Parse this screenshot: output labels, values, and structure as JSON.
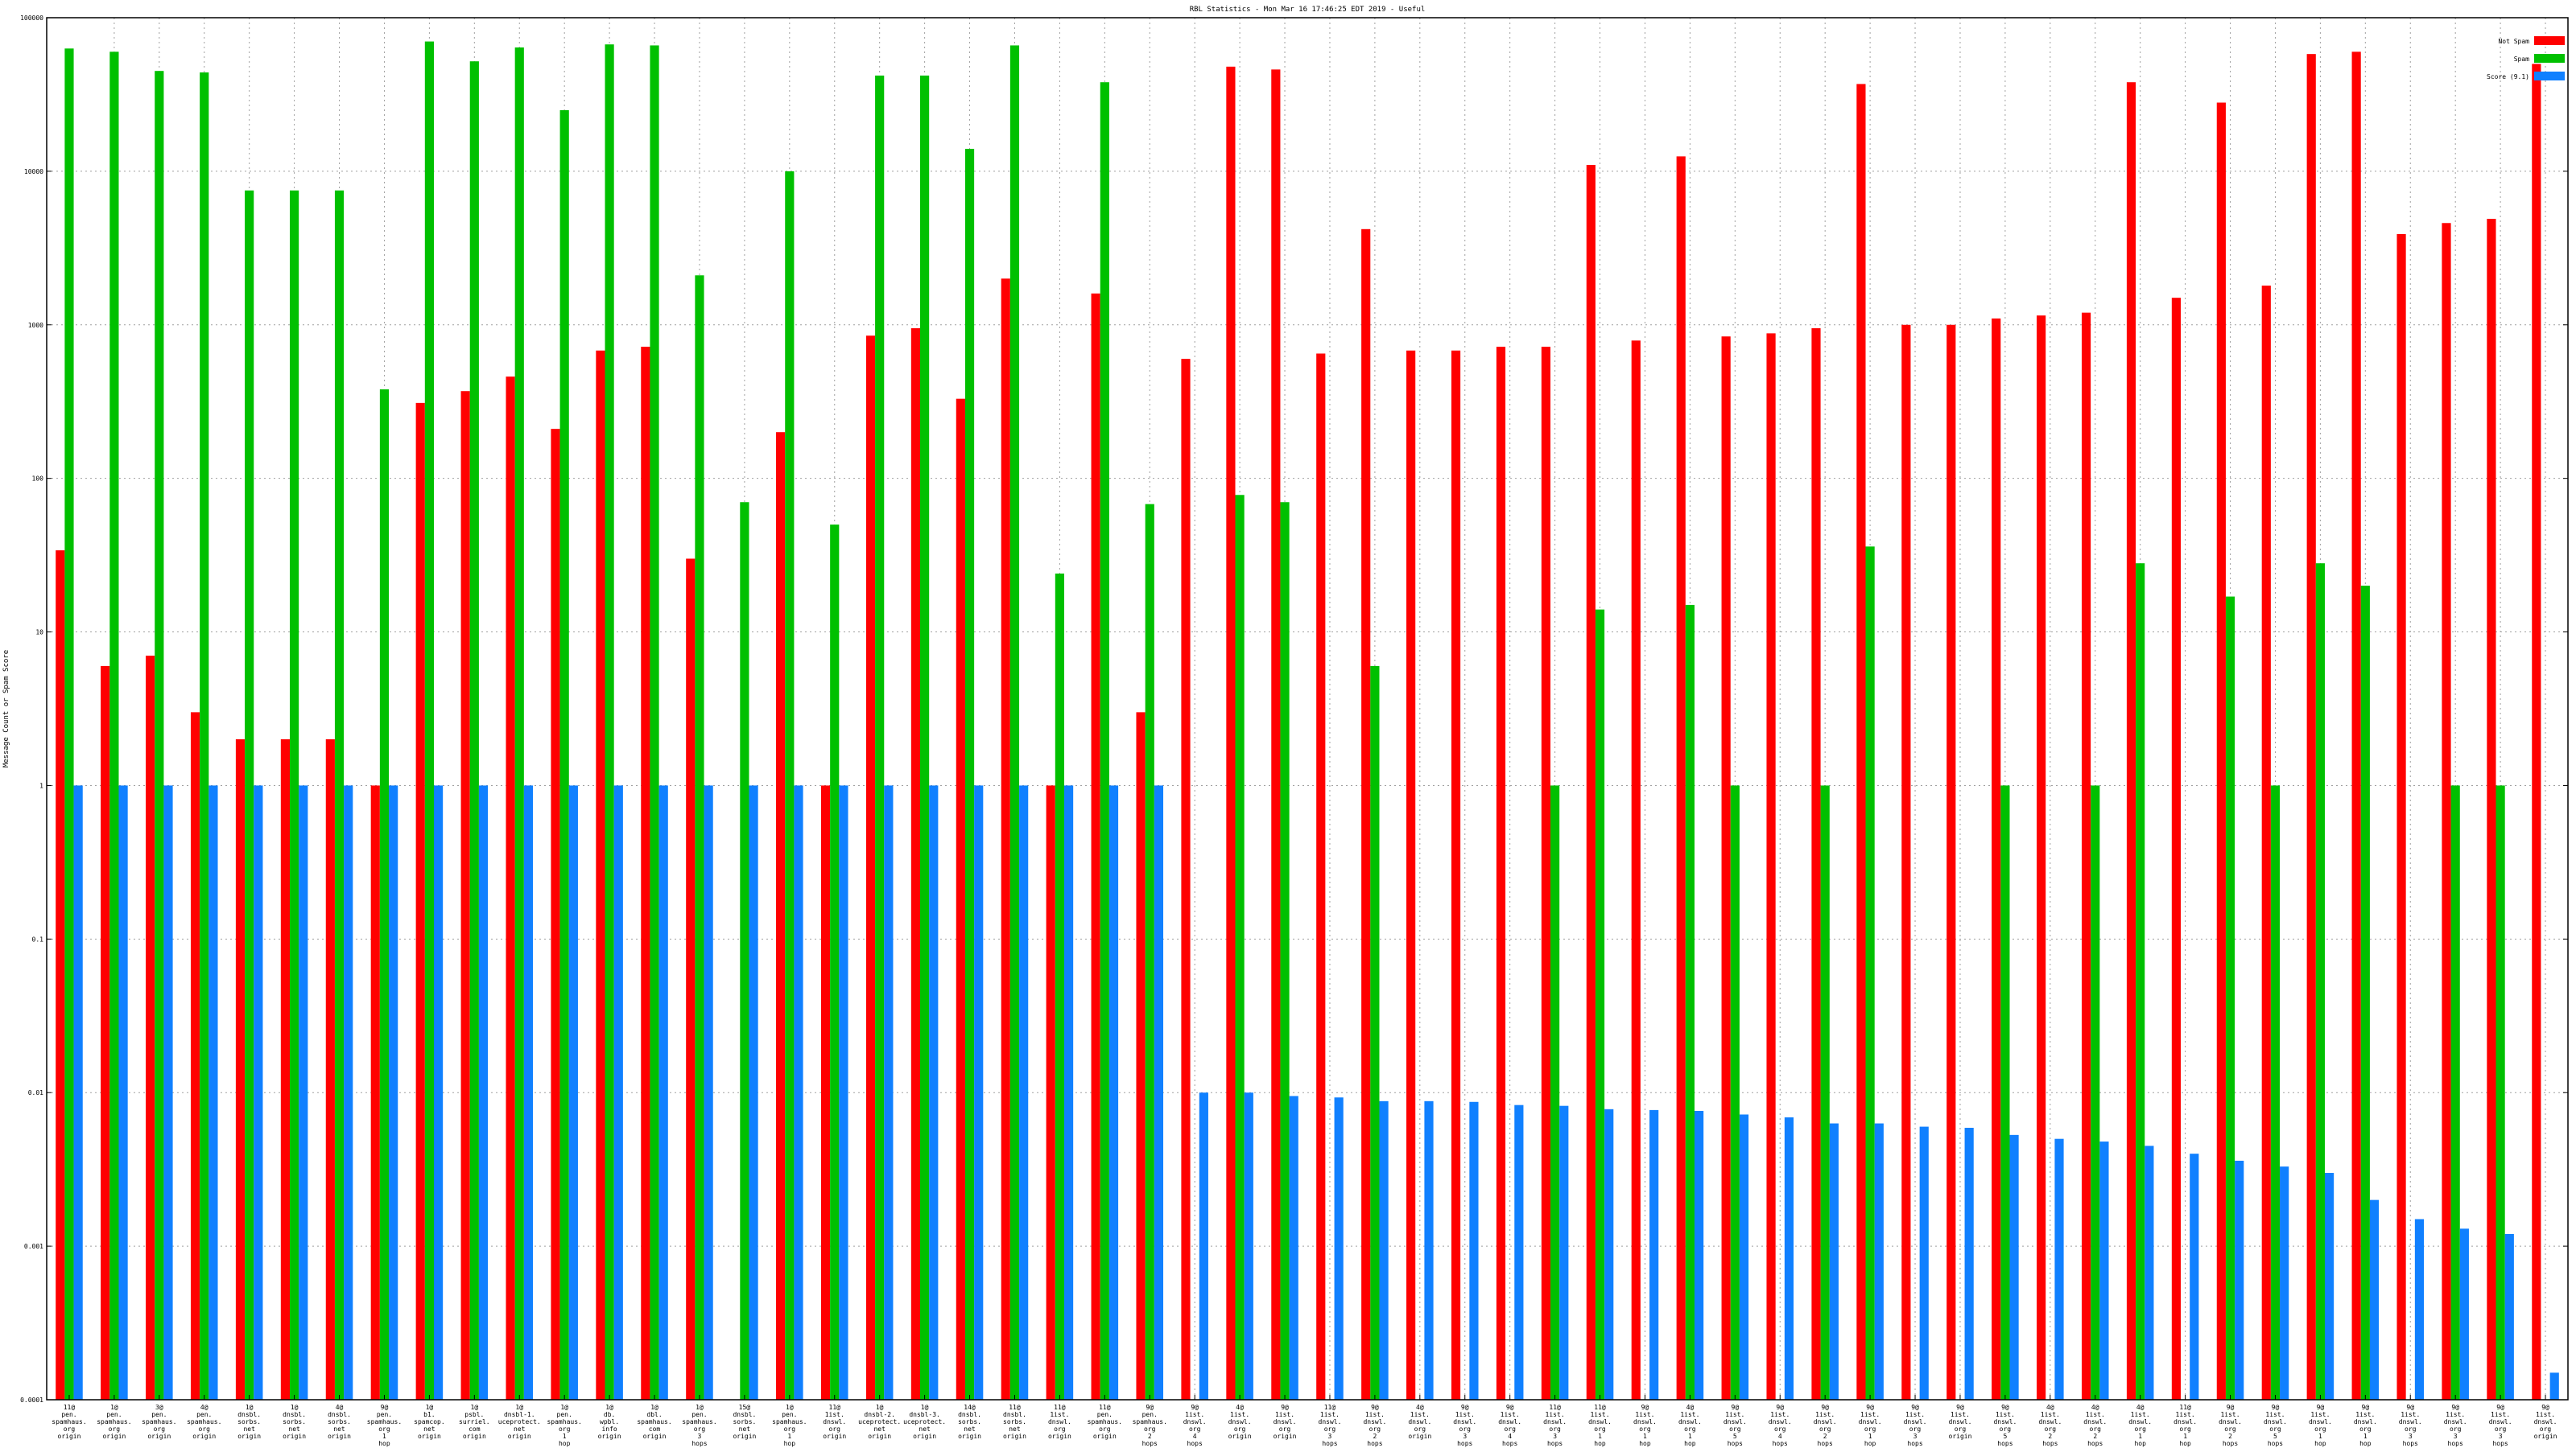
{
  "chart_data": {
    "type": "bar",
    "title": "RBL Statistics - Mon Mar 16 17:46:25 EDT 2019 - Useful",
    "ylabel": "Message Count or Spam Score",
    "yscale": "log",
    "ylim": [
      0.0001,
      100000
    ],
    "y_ticks": [
      "0.0001",
      "0.001",
      "0.01",
      "0.1",
      "1",
      "10",
      "100",
      "1000",
      "10000",
      "100000"
    ],
    "grid": true,
    "legend_position": "top-right",
    "colors": {
      "Not Spam": "#ff0000",
      "Spam": "#00c000",
      "Score": "#1080ff"
    },
    "categories": [
      "11@ pen. spamhaus. org origin",
      "1@ pen. spamhaus. org origin",
      "3@ pen. spamhaus. org origin",
      "4@ pen. spamhaus. org origin",
      "1@ dnsbl. sorbs. net origin",
      "1@ dnsbl. sorbs. net origin",
      "4@ dnsbl. sorbs. net origin",
      "9@ pen. spamhaus. org 1 hop",
      "1@ b1. spamcop. net origin",
      "1@ psbl. surriel. com origin",
      "1@ dnsbl-1. uceprotect. net origin",
      "1@ pen. spamhaus. org 1 hop",
      "1@ db. wpbl. info origin",
      "1@ dbl. spamhaus. com origin",
      "1@ pen. spamhaus. org 3 hops",
      "15@ dnsbl. sorbs. net origin",
      "1@ pen. spamhaus. org 1 hop",
      "11@ 1ist. dnswl. org origin",
      "1@ dnsbl-2. uceprotect. net origin",
      "1@ dnsbl-3. uceprotect. net origin",
      "14@ dnsbl. sorbs. net origin",
      "11@ dnsbl. sorbs. net origin",
      "11@ 1ist. dnswl. org origin",
      "11@ pen. spamhaus. org origin",
      "9@ pen. spamhaus. org 2 hops",
      "9@ 1ist. dnswl. org 4 hops",
      "4@ 1ist. dnswl. org origin",
      "9@ 1ist. dnswl. org origin",
      "11@ 1ist. dnswl. org 3 hops",
      "9@ 1ist. dnswl. org 2 hops",
      "4@ 1ist. dnswl. org origin",
      "9@ 1ist. dnswl. org 3 hops",
      "9@ 1ist. dnswl. org 4 hops",
      "11@ 1ist. dnswl. org 3 hops",
      "11@ 1ist. dnswl. org 1 hop",
      "9@ 1ist. dnswl. org 1 hop",
      "4@ 1ist. dnswl. org 1 hop",
      "9@ 1ist. dnswl. org 5 hops",
      "9@ 1ist. dnswl. org 4 hops",
      "9@ 1ist. dnswl. org 2 hops",
      "9@ 1ist. dnswl. org 1 hop",
      "9@ 1ist. dnswl. org 3 hops",
      "9@ 1ist. dnswl. org origin",
      "9@ 1ist. dnswl. org 5 hops",
      "4@ 1ist. dnswl. org 2 hops",
      "4@ 1ist. dnswl. org 2 hops",
      "4@ 1ist. dnswl. org 1 hop",
      "11@ 1ist. dnswl. org 1 hop",
      "9@ 1ist. dnswl. org 2 hops",
      "9@ 1ist. dnswl. org 5 hops",
      "9@ 1ist. dnswl. org 1 hop",
      "9@ 1ist. dnswl. org 1 hop",
      "9@ 1ist. dnswl. org 3 hops",
      "9@ 1ist. dnswl. org 3 hops",
      "9@ 1ist. dnswl. org 3 hops",
      "9@ 1ist. dnswl. org origin"
    ],
    "series": [
      {
        "name": "Not Spam",
        "values": [
          34,
          6,
          7,
          3,
          2,
          2,
          2,
          1,
          310,
          370,
          460,
          210,
          680,
          720,
          30,
          null,
          200,
          1,
          850,
          950,
          330,
          2000,
          1,
          1600,
          3,
          600,
          48000,
          46000,
          650,
          4200,
          680,
          680,
          720,
          720,
          11000,
          790,
          12500,
          840,
          880,
          950,
          37000,
          1000,
          1000,
          1100,
          1150,
          1200,
          38000,
          1500,
          28000,
          1800,
          58000,
          60000,
          3900,
          4600,
          4900,
          50000
        ]
      },
      {
        "name": "Spam",
        "values": [
          63000,
          60000,
          45000,
          44000,
          7500,
          7500,
          7500,
          380,
          70000,
          52000,
          64000,
          25000,
          67000,
          66000,
          2100,
          70,
          10000,
          50,
          42000,
          42000,
          14000,
          66000,
          24,
          38000,
          68,
          null,
          78,
          70,
          null,
          6,
          null,
          null,
          null,
          1,
          14,
          null,
          15,
          1,
          null,
          1,
          36,
          null,
          null,
          1,
          null,
          1,
          28,
          null,
          17,
          1,
          28,
          20,
          null,
          1,
          1,
          null
        ]
      },
      {
        "name": "Score (9.1)",
        "values": [
          1,
          1,
          1,
          1,
          1,
          1,
          1,
          1,
          1,
          1,
          1,
          1,
          1,
          1,
          1,
          1,
          1,
          1,
          1,
          1,
          1,
          1,
          1,
          1,
          1,
          0.01,
          0.01,
          0.0095,
          0.0093,
          0.0088,
          0.0088,
          0.0087,
          0.0083,
          0.0082,
          0.0078,
          0.0077,
          0.0076,
          0.0072,
          0.0069,
          0.0063,
          0.0063,
          0.006,
          0.0059,
          0.0053,
          0.005,
          0.0048,
          0.0045,
          0.004,
          0.0036,
          0.0033,
          0.003,
          0.002,
          0.0015,
          0.0013,
          0.0012,
          0.00015
        ]
      }
    ]
  }
}
